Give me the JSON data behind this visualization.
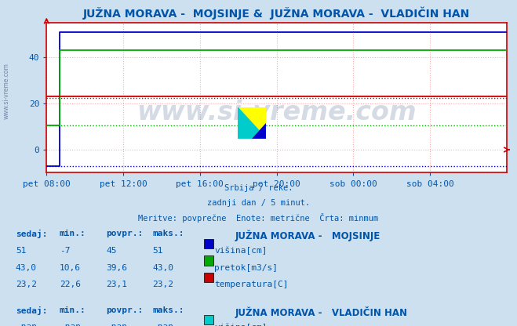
{
  "title": "JUŽNA MORAVA -  MOJSINJE &  JUŽNA MORAVA -  VLADIČIN HAN",
  "title_color": "#0055aa",
  "title_fontsize": 10,
  "bg_color": "#cce0f0",
  "plot_bg_color": "#ffffff",
  "watermark": "www.si-vreme.com",
  "watermark_color": "#1a3a6a",
  "watermark_alpha": 0.18,
  "xlabel_lines": [
    "Srbija / reke.",
    "zadnji dan / 5 minut.",
    "Meritve: povprečne  Enote: metrične  Črta: minmum"
  ],
  "xlabel_color": "#0055aa",
  "xlim": [
    0,
    288
  ],
  "ylim": [
    -10,
    55
  ],
  "yticks": [
    0,
    20,
    40
  ],
  "xtick_labels": [
    "pet 08:00",
    "pet 12:00",
    "pet 16:00",
    "pet 20:00",
    "sob 00:00",
    "sob 04:00"
  ],
  "xtick_positions": [
    0,
    48,
    96,
    144,
    192,
    240
  ],
  "grid_color": "#ffaaaa",
  "grid_linestyle": ":",
  "grid_linewidth": 0.8,
  "axis_color": "#cc0000",
  "tick_color": "#0055aa",
  "tick_fontsize": 8,
  "spike_x": 8,
  "mojsinje": {
    "visina_sedaj": 51,
    "visina_min": -7,
    "visina_povpr": 45,
    "visina_maks": 51,
    "visina_color": "#0000cc",
    "pretok_sedaj": "43,0",
    "pretok_min": "10,6",
    "pretok_povpr": "39,6",
    "pretok_maks": "43,0",
    "pretok_color": "#00aa00",
    "temp_sedaj": "23,2",
    "temp_min": "22,6",
    "temp_povpr": "23,1",
    "temp_maks": "23,2",
    "temp_color": "#cc0000",
    "visina_maks_val": 51,
    "visina_min_val": -7,
    "pretok_maks_val": 43.0,
    "pretok_min_val": 10.6,
    "temp_maks_val": 23.2,
    "temp_min_val": 22.6
  },
  "vladičin_han": {
    "visina_color": "#00cccc",
    "pretok_color": "#cc00cc",
    "temp_color": "#cccc00"
  },
  "table_color": "#0055aa",
  "table_bold_color": "#0055aa",
  "table_fontsize": 8,
  "figsize": [
    6.59,
    4.16
  ],
  "dpi": 100
}
